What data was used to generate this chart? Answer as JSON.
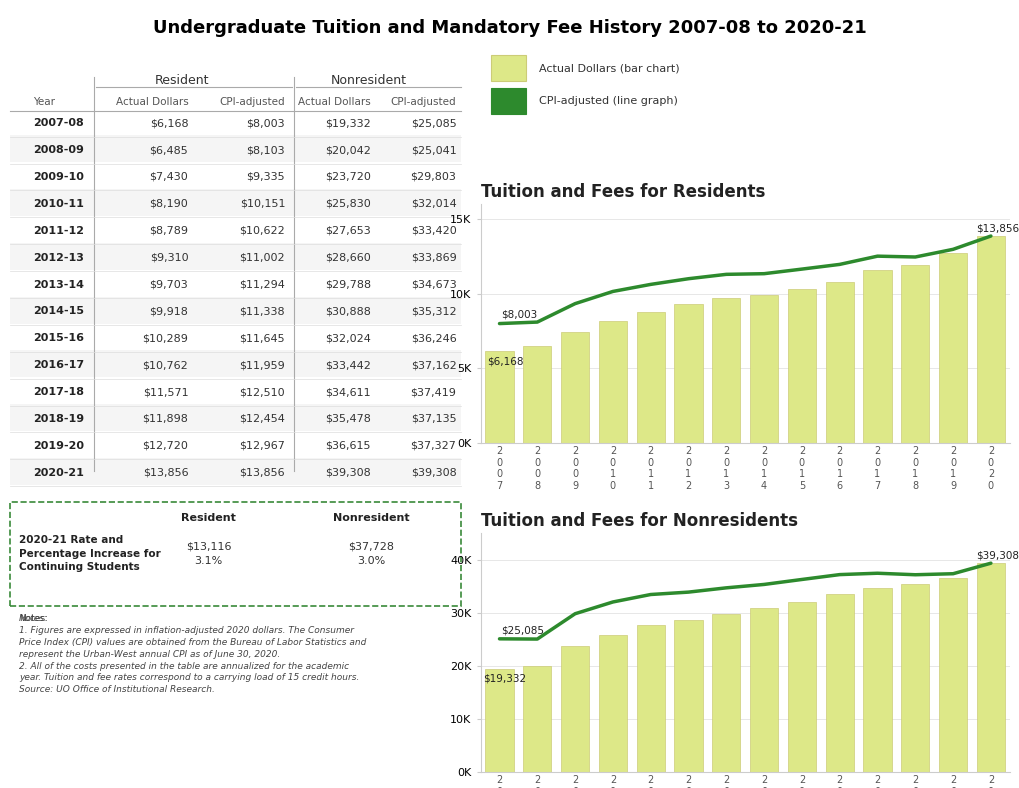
{
  "title": "Undergraduate Tuition and Mandatory Fee History 2007-08 to 2020-21",
  "years": [
    "2007",
    "2008",
    "2009",
    "2010",
    "2011",
    "2012",
    "2013",
    "2014",
    "2015",
    "2016",
    "2017",
    "2018",
    "2019",
    "2020"
  ],
  "table_years": [
    "2007-08",
    "2008-09",
    "2009-10",
    "2010-11",
    "2011-12",
    "2012-13",
    "2013-14",
    "2014-15",
    "2015-16",
    "2016-17",
    "2017-18",
    "2018-19",
    "2019-20",
    "2020-21"
  ],
  "resident_actual": [
    6168,
    6485,
    7430,
    8190,
    8789,
    9310,
    9703,
    9918,
    10289,
    10762,
    11571,
    11898,
    12720,
    13856
  ],
  "resident_cpi": [
    8003,
    8103,
    9335,
    10151,
    10622,
    11002,
    11294,
    11338,
    11645,
    11959,
    12510,
    12454,
    12967,
    13856
  ],
  "nonresident_actual": [
    19332,
    20042,
    23720,
    25830,
    27653,
    28660,
    29788,
    30888,
    32024,
    33442,
    34611,
    35478,
    36615,
    39308
  ],
  "nonresident_cpi": [
    25085,
    25041,
    29803,
    32014,
    33420,
    33869,
    34673,
    35312,
    36246,
    37162,
    37419,
    37135,
    37327,
    39308
  ],
  "bar_color": "#dde888",
  "bar_edgecolor": "#cccc77",
  "line_color": "#2d8a2d",
  "chart_title_resident": "Tuition and Fees for Residents",
  "chart_title_nonresident": "Tuition and Fees for Nonresidents",
  "legend_bar_label": "Actual Dollars (bar chart)",
  "legend_line_label": "CPI-adjusted (line graph)",
  "summary_resident_val": "$13,116",
  "summary_resident_pct": "3.1%",
  "summary_nonresident_val": "$37,728",
  "summary_nonresident_pct": "3.0%"
}
